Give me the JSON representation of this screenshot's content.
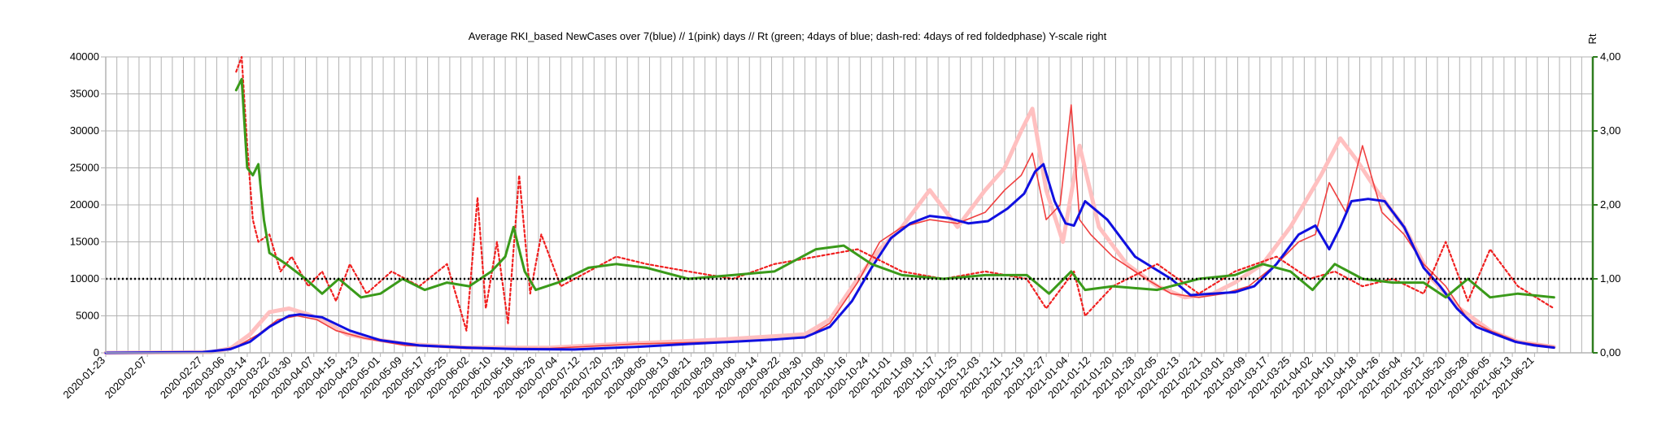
{
  "chart_data": {
    "type": "line",
    "title": "Average RKI_based NewCases over 7(blue) // 1(pink) days //  Rt (green; 4days of blue; dash-red: 4days of red foldedphase) Y-scale right",
    "xlabel": "",
    "ylabel": "",
    "y2label": "Rt",
    "ylim": [
      0,
      40000
    ],
    "y2lim": [
      0,
      4
    ],
    "yticks": [
      "0",
      "5000",
      "10000",
      "15000",
      "20000",
      "25000",
      "30000",
      "35000",
      "40000"
    ],
    "y2ticks": [
      "0,00",
      "1,00",
      "2,00",
      "3,00",
      "4,00"
    ],
    "grid": true,
    "x_start": "2020-01-23",
    "x_end": "2021-07-12",
    "x_tick_labels": [
      "2020-01-23",
      "2020-02-07",
      "2020-02-27",
      "2020-03-06",
      "2020-03-14",
      "2020-03-22",
      "2020-03-30",
      "2020-04-07",
      "2020-04-15",
      "2020-04-23",
      "2020-05-01",
      "2020-05-09",
      "2020-05-17",
      "2020-05-25",
      "2020-06-02",
      "2020-06-10",
      "2020-06-18",
      "2020-06-26",
      "2020-07-04",
      "2020-07-12",
      "2020-07-20",
      "2020-07-28",
      "2020-08-05",
      "2020-08-13",
      "2020-08-21",
      "2020-08-29",
      "2020-09-06",
      "2020-09-14",
      "2020-09-22",
      "2020-09-30",
      "2020-10-08",
      "2020-10-16",
      "2020-10-24",
      "2020-11-01",
      "2020-11-09",
      "2020-11-17",
      "2020-11-25",
      "2020-12-03",
      "2020-12-11",
      "2020-12-19",
      "2020-12-27",
      "2021-01-04",
      "2021-01-12",
      "2021-01-20",
      "2021-01-28",
      "2021-02-05",
      "2021-02-13",
      "2021-02-21",
      "2021-03-01",
      "2021-03-09",
      "2021-03-17",
      "2021-03-25",
      "2021-04-02",
      "2021-04-10",
      "2021-04-18",
      "2021-04-26",
      "2021-05-04",
      "2021-05-12",
      "2021-05-20",
      "2021-05-28",
      "2021-06-05",
      "2021-06-13",
      "2021-06-21"
    ],
    "reference_line": {
      "axis": "y2",
      "value": 1.0,
      "color": "#000000",
      "style": "dotted"
    },
    "series": [
      {
        "axis": "y",
        "color": "#ffc0c0",
        "style": "solid",
        "x": [
          "2020-01-23",
          "2020-03-01",
          "2020-03-08",
          "2020-03-15",
          "2020-03-22",
          "2020-03-29",
          "2020-04-05",
          "2020-04-12",
          "2020-04-19",
          "2020-04-26",
          "2020-05-10",
          "2020-06-01",
          "2020-07-01",
          "2020-08-01",
          "2020-09-01",
          "2020-10-01",
          "2020-10-10",
          "2020-10-20",
          "2020-10-28",
          "2020-11-05",
          "2020-11-15",
          "2020-11-25",
          "2020-12-05",
          "2020-12-12",
          "2020-12-18",
          "2020-12-22",
          "2020-12-27",
          "2021-01-02",
          "2021-01-08",
          "2021-01-15",
          "2021-01-25",
          "2021-02-05",
          "2021-02-15",
          "2021-02-25",
          "2021-03-05",
          "2021-03-15",
          "2021-03-25",
          "2021-04-05",
          "2021-04-12",
          "2021-04-18",
          "2021-04-25",
          "2021-05-05",
          "2021-05-15",
          "2021-05-25",
          "2021-06-05",
          "2021-06-15",
          "2021-06-28"
        ],
        "y": [
          0,
          100,
          600,
          2500,
          5500,
          6000,
          5200,
          4000,
          2500,
          2000,
          1200,
          700,
          700,
          1300,
          1800,
          2500,
          4500,
          10000,
          14000,
          17000,
          22000,
          17000,
          22000,
          25000,
          30000,
          33000,
          22000,
          15000,
          28000,
          17000,
          12000,
          9000,
          7500,
          8000,
          9500,
          12000,
          17000,
          24000,
          29000,
          26000,
          22000,
          17000,
          10000,
          6000,
          3000,
          1500,
          800
        ]
      },
      {
        "axis": "y",
        "color": "#f04040",
        "style": "solid",
        "x": [
          "2020-01-23",
          "2020-03-01",
          "2020-03-10",
          "2020-03-18",
          "2020-03-25",
          "2020-04-01",
          "2020-04-08",
          "2020-04-15",
          "2020-04-25",
          "2020-05-10",
          "2020-06-01",
          "2020-07-01",
          "2020-08-01",
          "2020-09-01",
          "2020-10-01",
          "2020-10-10",
          "2020-10-20",
          "2020-10-28",
          "2020-11-05",
          "2020-11-15",
          "2020-11-25",
          "2020-12-05",
          "2020-12-12",
          "2020-12-18",
          "2020-12-22",
          "2020-12-27",
          "2021-01-01",
          "2021-01-05",
          "2021-01-08",
          "2021-01-12",
          "2021-01-20",
          "2021-02-01",
          "2021-02-10",
          "2021-02-20",
          "2021-03-01",
          "2021-03-10",
          "2021-03-20",
          "2021-03-28",
          "2021-04-03",
          "2021-04-08",
          "2021-04-14",
          "2021-04-20",
          "2021-04-27",
          "2021-05-05",
          "2021-05-12",
          "2021-05-20",
          "2021-05-28",
          "2021-06-05",
          "2021-06-15",
          "2021-06-28"
        ],
        "y": [
          0,
          100,
          800,
          2500,
          4500,
          5000,
          4500,
          3000,
          2000,
          1000,
          600,
          600,
          1200,
          1500,
          2000,
          4000,
          9500,
          15000,
          17000,
          18000,
          17500,
          19000,
          22000,
          24000,
          27000,
          18000,
          20000,
          33500,
          18000,
          16000,
          13000,
          10000,
          8000,
          7500,
          8000,
          9000,
          12000,
          15000,
          16000,
          23000,
          19000,
          28000,
          19000,
          16000,
          12000,
          9000,
          4500,
          3000,
          1500,
          800
        ]
      },
      {
        "axis": "y",
        "color": "#1010e0",
        "style": "solid",
        "x": [
          "2020-01-23",
          "2020-02-27",
          "2020-03-08",
          "2020-03-15",
          "2020-03-22",
          "2020-03-29",
          "2020-04-02",
          "2020-04-10",
          "2020-04-20",
          "2020-05-01",
          "2020-05-15",
          "2020-06-01",
          "2020-06-20",
          "2020-07-10",
          "2020-08-01",
          "2020-08-20",
          "2020-09-05",
          "2020-09-20",
          "2020-10-01",
          "2020-10-10",
          "2020-10-18",
          "2020-10-25",
          "2020-11-01",
          "2020-11-08",
          "2020-11-15",
          "2020-11-22",
          "2020-11-29",
          "2020-12-06",
          "2020-12-13",
          "2020-12-19",
          "2020-12-23",
          "2020-12-26",
          "2020-12-30",
          "2021-01-03",
          "2021-01-06",
          "2021-01-10",
          "2021-01-18",
          "2021-01-28",
          "2021-02-10",
          "2021-02-17",
          "2021-02-25",
          "2021-03-05",
          "2021-03-12",
          "2021-03-20",
          "2021-03-28",
          "2021-04-03",
          "2021-04-08",
          "2021-04-12",
          "2021-04-16",
          "2021-04-22",
          "2021-04-28",
          "2021-05-05",
          "2021-05-12",
          "2021-05-18",
          "2021-05-24",
          "2021-05-31",
          "2021-06-07",
          "2021-06-14",
          "2021-06-21",
          "2021-06-28"
        ],
        "y": [
          0,
          100,
          500,
          1500,
          3500,
          5000,
          5200,
          4800,
          3000,
          1700,
          1000,
          700,
          500,
          450,
          800,
          1200,
          1500,
          1800,
          2100,
          3500,
          7000,
          11500,
          15500,
          17500,
          18500,
          18200,
          17500,
          17800,
          19500,
          21500,
          24500,
          25500,
          20500,
          17500,
          17200,
          20500,
          18000,
          13000,
          10000,
          7800,
          8000,
          8200,
          9000,
          12000,
          16000,
          17200,
          14000,
          17000,
          20500,
          20800,
          20500,
          17000,
          11500,
          9000,
          6000,
          3500,
          2500,
          1500,
          1000,
          700
        ]
      },
      {
        "axis": "y2",
        "color": "#f02020",
        "style": "dotted",
        "x": [
          "2020-03-10",
          "2020-03-12",
          "2020-03-14",
          "2020-03-16",
          "2020-03-18",
          "2020-03-22",
          "2020-03-26",
          "2020-03-30",
          "2020-04-05",
          "2020-04-10",
          "2020-04-15",
          "2020-04-20",
          "2020-04-26",
          "2020-05-05",
          "2020-05-15",
          "2020-05-25",
          "2020-06-01",
          "2020-06-05",
          "2020-06-08",
          "2020-06-12",
          "2020-06-16",
          "2020-06-20",
          "2020-06-24",
          "2020-06-28",
          "2020-07-05",
          "2020-07-15",
          "2020-07-25",
          "2020-08-05",
          "2020-08-20",
          "2020-09-05",
          "2020-09-20",
          "2020-10-05",
          "2020-10-20",
          "2020-11-05",
          "2020-11-20",
          "2020-12-05",
          "2020-12-20",
          "2020-12-27",
          "2021-01-02",
          "2021-01-06",
          "2021-01-10",
          "2021-01-20",
          "2021-02-05",
          "2021-02-20",
          "2021-03-05",
          "2021-03-20",
          "2021-04-01",
          "2021-04-10",
          "2021-04-20",
          "2021-05-01",
          "2021-05-12",
          "2021-05-20",
          "2021-05-28",
          "2021-06-05",
          "2021-06-15",
          "2021-06-28"
        ],
        "y": [
          3.8,
          4.0,
          2.8,
          1.8,
          1.5,
          1.6,
          1.1,
          1.3,
          0.9,
          1.1,
          0.7,
          1.2,
          0.8,
          1.1,
          0.9,
          1.2,
          0.3,
          2.1,
          0.6,
          1.5,
          0.4,
          2.4,
          0.8,
          1.6,
          0.9,
          1.1,
          1.3,
          1.2,
          1.1,
          1.0,
          1.2,
          1.3,
          1.4,
          1.1,
          1.0,
          1.1,
          1.0,
          0.6,
          0.9,
          1.1,
          0.5,
          0.9,
          1.2,
          0.8,
          1.1,
          1.3,
          1.0,
          1.1,
          0.9,
          1.0,
          0.8,
          1.5,
          0.7,
          1.4,
          0.9,
          0.6
        ]
      },
      {
        "axis": "y2",
        "color": "#3a9a1a",
        "style": "solid",
        "x": [
          "2020-03-10",
          "2020-03-12",
          "2020-03-14",
          "2020-03-16",
          "2020-03-18",
          "2020-03-20",
          "2020-03-22",
          "2020-03-28",
          "2020-04-04",
          "2020-04-10",
          "2020-04-16",
          "2020-04-24",
          "2020-05-01",
          "2020-05-09",
          "2020-05-17",
          "2020-05-25",
          "2020-06-02",
          "2020-06-10",
          "2020-06-15",
          "2020-06-18",
          "2020-06-22",
          "2020-06-26",
          "2020-07-04",
          "2020-07-15",
          "2020-07-25",
          "2020-08-05",
          "2020-08-20",
          "2020-09-05",
          "2020-09-20",
          "2020-10-05",
          "2020-10-15",
          "2020-10-25",
          "2020-11-05",
          "2020-11-20",
          "2020-12-05",
          "2020-12-20",
          "2020-12-28",
          "2021-01-05",
          "2021-01-10",
          "2021-01-20",
          "2021-02-05",
          "2021-02-20",
          "2021-03-05",
          "2021-03-15",
          "2021-03-25",
          "2021-04-02",
          "2021-04-10",
          "2021-04-20",
          "2021-05-01",
          "2021-05-12",
          "2021-05-20",
          "2021-05-28",
          "2021-06-05",
          "2021-06-15",
          "2021-06-28"
        ],
        "y": [
          3.55,
          3.7,
          2.5,
          2.4,
          2.55,
          1.8,
          1.35,
          1.2,
          1.0,
          0.8,
          1.0,
          0.75,
          0.8,
          1.0,
          0.85,
          0.95,
          0.9,
          1.1,
          1.3,
          1.7,
          1.1,
          0.85,
          0.95,
          1.15,
          1.2,
          1.15,
          1.0,
          1.05,
          1.1,
          1.4,
          1.45,
          1.2,
          1.05,
          1.0,
          1.05,
          1.05,
          0.8,
          1.1,
          0.85,
          0.9,
          0.85,
          1.0,
          1.05,
          1.2,
          1.1,
          0.85,
          1.2,
          1.0,
          0.95,
          0.95,
          0.75,
          1.0,
          0.75,
          0.8,
          0.75
        ]
      }
    ]
  }
}
